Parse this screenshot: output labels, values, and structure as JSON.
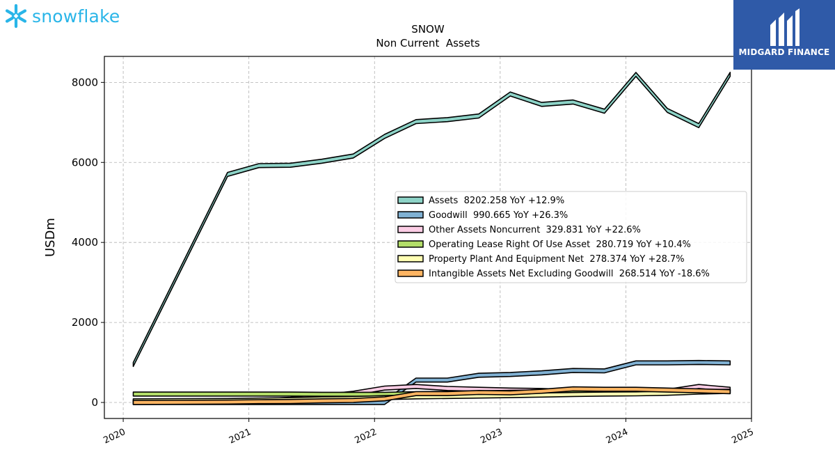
{
  "brand": {
    "left_logo_text": "snowflake",
    "left_logo_icon": "snowflake-icon",
    "right_logo_text": "MIDGARD FINANCE",
    "right_logo_icon": "midgard-mark-icon",
    "right_bg": "#2f5aa8",
    "left_color": "#29b5e8"
  },
  "chart_data": {
    "type": "area",
    "title": "SNOW",
    "subtitle": "Non Current  Assets",
    "ylabel": "USDm",
    "xlabel": "",
    "x_range": [
      2019.85,
      2025.0
    ],
    "ylim": [
      -400,
      8650
    ],
    "x_ticks": [
      {
        "value": 2020,
        "label": "2020"
      },
      {
        "value": 2021,
        "label": "2021"
      },
      {
        "value": 2022,
        "label": "2022"
      },
      {
        "value": 2023,
        "label": "2023"
      },
      {
        "value": 2024,
        "label": "2024"
      },
      {
        "value": 2025,
        "label": "2025"
      }
    ],
    "y_ticks": [
      0,
      2000,
      4000,
      6000,
      8000
    ],
    "grid": true,
    "legend_position": "center-right",
    "x": [
      2020.08,
      2020.83,
      2021.08,
      2021.33,
      2021.58,
      2021.83,
      2022.08,
      2022.33,
      2022.58,
      2022.83,
      2023.08,
      2023.33,
      2023.58,
      2023.83,
      2024.08,
      2024.33,
      2024.58,
      2024.83
    ],
    "series": [
      {
        "name": "Assets",
        "label": "Assets  8202.258 YoY +12.9%",
        "color": "#8dd3c7",
        "values": [
          950,
          5700,
          5920,
          5930,
          6030,
          6160,
          6650,
          7020,
          7070,
          7160,
          7710,
          7450,
          7510,
          7280,
          8200,
          7300,
          6920,
          8202
        ]
      },
      {
        "name": "Goodwill",
        "label": "Goodwill  990.665 YoY +26.3%",
        "color": "#80b1d3",
        "values": [
          0,
          0,
          0,
          0,
          0,
          0,
          0,
          560,
          560,
          680,
          700,
          740,
          800,
          790,
          990,
          990,
          1000,
          990
        ]
      },
      {
        "name": "Other Assets Noncurrent",
        "label": "Other Assets Noncurrent  329.831 YoY +22.6%",
        "color": "#fccde5",
        "values": [
          10,
          20,
          40,
          80,
          150,
          230,
          360,
          400,
          350,
          330,
          310,
          300,
          270,
          270,
          270,
          280,
          400,
          330
        ]
      },
      {
        "name": "Operating Lease Right Of Use Asset",
        "label": "Operating Lease Right Of Use Asset  280.719 YoY +10.4%",
        "color": "#b3de69",
        "values": [
          210,
          210,
          210,
          210,
          205,
          205,
          205,
          220,
          230,
          240,
          255,
          260,
          260,
          255,
          255,
          260,
          270,
          281
        ]
      },
      {
        "name": "Property Plant And Equipment Net",
        "label": "Property Plant And Equipment Net  278.374 YoY +28.7%",
        "color": "#ffffb3",
        "values": [
          40,
          50,
          60,
          70,
          90,
          100,
          120,
          140,
          150,
          160,
          170,
          185,
          200,
          210,
          215,
          230,
          260,
          278
        ]
      },
      {
        "name": "Intangible Assets Net Excluding Goodwill",
        "label": "Intangible Assets Net Excluding Goodwill  268.514 YoY -18.6%",
        "color": "#fdb462",
        "values": [
          0,
          10,
          20,
          25,
          40,
          50,
          90,
          220,
          220,
          250,
          240,
          280,
          340,
          330,
          330,
          310,
          290,
          269
        ]
      }
    ]
  }
}
